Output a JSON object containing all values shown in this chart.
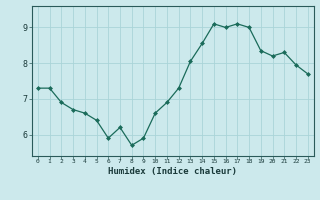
{
  "x": [
    0,
    1,
    2,
    3,
    4,
    5,
    6,
    7,
    8,
    9,
    10,
    11,
    12,
    13,
    14,
    15,
    16,
    17,
    18,
    19,
    20,
    21,
    22,
    23
  ],
  "y": [
    7.3,
    7.3,
    6.9,
    6.7,
    6.6,
    6.4,
    5.9,
    6.2,
    5.7,
    5.9,
    6.6,
    6.9,
    7.3,
    8.05,
    8.55,
    9.1,
    9.0,
    9.1,
    9.0,
    8.35,
    8.2,
    8.3,
    7.95,
    7.7
  ],
  "xlabel": "Humidex (Indice chaleur)",
  "bg_color": "#cce9ec",
  "grid_color": "#aad4d8",
  "line_color": "#1a6b5a",
  "marker_color": "#1a6b5a",
  "yticks": [
    6,
    7,
    8,
    9
  ],
  "xticks": [
    0,
    1,
    2,
    3,
    4,
    5,
    6,
    7,
    8,
    9,
    10,
    11,
    12,
    13,
    14,
    15,
    16,
    17,
    18,
    19,
    20,
    21,
    22,
    23
  ],
  "ylim": [
    5.4,
    9.6
  ],
  "xlim": [
    -0.5,
    23.5
  ]
}
